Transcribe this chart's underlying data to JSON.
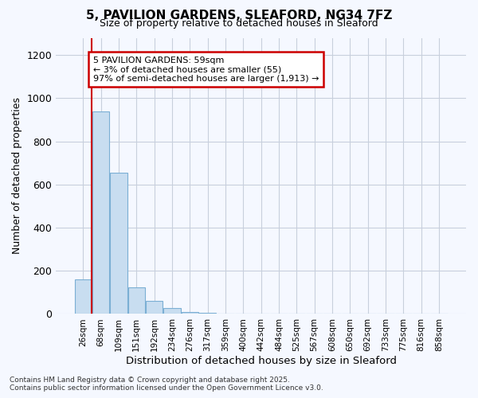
{
  "title": "5, PAVILION GARDENS, SLEAFORD, NG34 7FZ",
  "subtitle": "Size of property relative to detached houses in Sleaford",
  "xlabel": "Distribution of detached houses by size in Sleaford",
  "ylabel": "Number of detached properties",
  "categories": [
    "26sqm",
    "68sqm",
    "109sqm",
    "151sqm",
    "192sqm",
    "234sqm",
    "276sqm",
    "317sqm",
    "359sqm",
    "400sqm",
    "442sqm",
    "484sqm",
    "525sqm",
    "567sqm",
    "608sqm",
    "650sqm",
    "692sqm",
    "733sqm",
    "775sqm",
    "816sqm",
    "858sqm"
  ],
  "values": [
    160,
    940,
    655,
    125,
    60,
    28,
    10,
    5,
    0,
    0,
    0,
    3,
    0,
    0,
    0,
    0,
    0,
    0,
    0,
    0,
    0
  ],
  "bar_color": "#c8ddf0",
  "bar_edgecolor": "#7bafd4",
  "grid_color": "#c8d0dc",
  "background_color": "#ffffff",
  "figure_bg": "#f5f8ff",
  "vline_color": "#cc0000",
  "vline_x": 0.5,
  "annotation_text": "5 PAVILION GARDENS: 59sqm\n← 3% of detached houses are smaller (55)\n97% of semi-detached houses are larger (1,913) →",
  "annotation_box_color": "white",
  "annotation_box_edgecolor": "#cc0000",
  "ylim": [
    0,
    1280
  ],
  "yticks": [
    0,
    200,
    400,
    600,
    800,
    1000,
    1200
  ],
  "footnote1": "Contains HM Land Registry data © Crown copyright and database right 2025.",
  "footnote2": "Contains public sector information licensed under the Open Government Licence v3.0."
}
